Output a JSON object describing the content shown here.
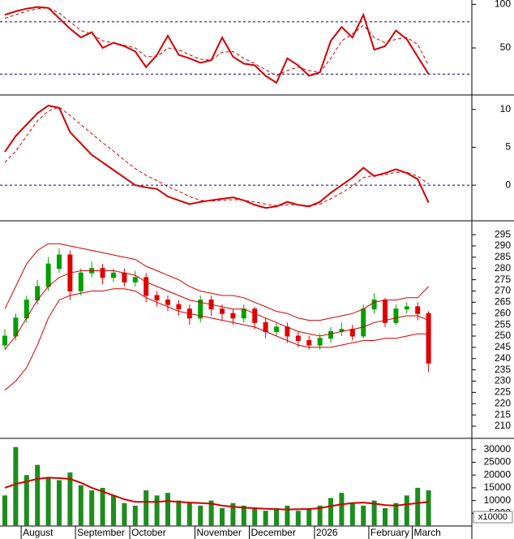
{
  "chart_data": [
    {
      "type": "line",
      "ylim": [
        -4,
        105
      ],
      "yticks": [
        50,
        100
      ],
      "hlines": [
        20,
        80
      ],
      "hline_color": "#00008b",
      "series": [
        {
          "color": "#d40000",
          "line_width": 2,
          "dashed": false,
          "values": [
            88,
            92,
            95,
            97,
            96,
            84,
            72,
            62,
            68,
            50,
            56,
            52,
            46,
            28,
            42,
            64,
            42,
            38,
            33,
            36,
            62,
            40,
            32,
            30,
            18,
            10,
            38,
            30,
            18,
            22,
            58,
            74,
            62,
            88,
            48,
            52,
            70,
            60,
            40,
            20
          ]
        },
        {
          "color": "#d40000",
          "line_width": 1,
          "dashed": true,
          "values": [
            84,
            88,
            92,
            95,
            96,
            90,
            80,
            70,
            66,
            58,
            56,
            53,
            50,
            40,
            40,
            50,
            48,
            42,
            37,
            36,
            45,
            46,
            38,
            32,
            25,
            18,
            24,
            28,
            24,
            22,
            38,
            58,
            66,
            76,
            62,
            56,
            60,
            62,
            54,
            30
          ]
        }
      ]
    },
    {
      "type": "line",
      "ylim": [
        -4.7,
        11.8
      ],
      "yticks": [
        0,
        5,
        10
      ],
      "hlines": [
        0
      ],
      "hline_color": "#00008b",
      "series": [
        {
          "color": "#d40000",
          "line_width": 2,
          "dashed": false,
          "values": [
            4.4,
            6.5,
            8,
            9.5,
            10.5,
            10.2,
            7,
            5.5,
            4,
            3,
            2,
            1,
            0,
            -0.3,
            -0.5,
            -1.5,
            -2,
            -2.5,
            -2.2,
            -2,
            -1.8,
            -1.6,
            -2,
            -2.6,
            -3,
            -2.8,
            -2.2,
            -2.6,
            -2.8,
            -2.2,
            -1,
            0,
            1,
            2.3,
            1.2,
            1.6,
            2.1,
            1.6,
            0.8,
            -2.3
          ]
        },
        {
          "color": "#d40000",
          "line_width": 1,
          "dashed": true,
          "values": [
            3,
            4.5,
            6.5,
            8.5,
            9.8,
            10.3,
            9.2,
            8,
            6.8,
            5.6,
            4.5,
            3.3,
            2.2,
            1.3,
            0.6,
            -0.2,
            -0.8,
            -1.5,
            -2,
            -2.1,
            -2,
            -1.9,
            -2,
            -2.2,
            -2.5,
            -2.7,
            -2.6,
            -2.6,
            -2.7,
            -2.5,
            -1.8,
            -1,
            -0.1,
            1,
            1.3,
            1.4,
            1.7,
            1.7,
            1.2,
            0.2
          ]
        }
      ]
    },
    {
      "type": "candlestick",
      "ylim": [
        204.6,
        300.8
      ],
      "yticks": [
        210,
        215,
        220,
        225,
        230,
        235,
        240,
        245,
        250,
        255,
        260,
        265,
        270,
        275,
        280,
        285,
        290,
        295
      ],
      "up_color": "#00a000",
      "down_color": "#e00000",
      "open": [
        246,
        250,
        258,
        266,
        272,
        280,
        286,
        270,
        278,
        280,
        276,
        278,
        274,
        276,
        268,
        266,
        264,
        262,
        258,
        266,
        262,
        260,
        258,
        262,
        256,
        252,
        254,
        250,
        248,
        246,
        249,
        252,
        253,
        250,
        262,
        266,
        256,
        262,
        263,
        260
      ],
      "high": [
        253,
        260,
        268,
        275,
        285,
        289,
        288,
        280,
        283,
        282,
        280,
        280,
        279,
        278,
        270,
        268,
        266,
        264,
        268,
        268,
        264,
        262,
        264,
        263,
        258,
        256,
        256,
        252,
        250,
        251,
        254,
        256,
        255,
        264,
        269,
        267,
        264,
        265,
        265,
        261
      ],
      "low": [
        244,
        248,
        256,
        264,
        270,
        278,
        266,
        268,
        276,
        273,
        274,
        272,
        272,
        265,
        263,
        261,
        259,
        255,
        256,
        259,
        257,
        255,
        256,
        253,
        249,
        250,
        247,
        245,
        244,
        244,
        247,
        250,
        248,
        249,
        260,
        254,
        255,
        260,
        257,
        234
      ],
      "close": [
        250,
        258,
        266,
        272,
        282,
        286,
        270,
        278,
        280,
        276,
        278,
        274,
        276,
        268,
        266,
        264,
        262,
        258,
        266,
        262,
        260,
        258,
        262,
        256,
        252,
        254,
        250,
        248,
        246,
        249,
        252,
        253,
        250,
        262,
        266,
        256,
        262,
        263,
        260,
        238
      ],
      "series": [
        {
          "color": "#d40000",
          "line_width": 1,
          "dashed": false,
          "values": [
            262,
            272,
            282,
            288,
            291,
            291,
            290,
            289,
            288,
            287,
            286,
            285,
            284,
            281,
            279,
            277,
            275,
            272,
            270,
            269,
            268,
            268,
            267,
            265,
            263,
            261,
            260,
            258,
            257,
            257,
            258,
            259,
            260,
            262,
            265,
            266,
            266,
            267,
            267,
            272
          ]
        },
        {
          "color": "#d40000",
          "line_width": 1,
          "dashed": false,
          "values": [
            244,
            250,
            258,
            266,
            272,
            276,
            278,
            279,
            279,
            279,
            279,
            278,
            277,
            274,
            272,
            270,
            268,
            266,
            265,
            264,
            263,
            262,
            262,
            260,
            258,
            256,
            254,
            252,
            251,
            250,
            251,
            252,
            253,
            254,
            256,
            257,
            258,
            259,
            259,
            257
          ]
        },
        {
          "color": "#d40000",
          "line_width": 1,
          "dashed": false,
          "values": [
            226,
            230,
            236,
            246,
            258,
            266,
            268,
            269,
            270,
            270,
            271,
            271,
            270,
            267,
            265,
            263,
            261,
            260,
            259,
            258,
            257,
            256,
            255,
            254,
            252,
            250,
            248,
            246,
            245,
            245,
            245,
            246,
            247,
            248,
            248,
            249,
            249,
            250,
            251,
            251
          ]
        }
      ]
    },
    {
      "type": "bar",
      "ylim": [
        0,
        34100
      ],
      "yticks": [
        5000,
        10000,
        15000,
        20000,
        25000,
        30000
      ],
      "axis_note": "x10000",
      "color": "#1e8c1e",
      "categories": [
        null,
        null,
        "August",
        null,
        null,
        null,
        null,
        "September",
        null,
        null,
        null,
        null,
        "October",
        null,
        null,
        null,
        null,
        null,
        "November",
        null,
        null,
        null,
        null,
        "December",
        null,
        null,
        null,
        null,
        null,
        "2026",
        null,
        null,
        null,
        null,
        "February",
        null,
        null,
        null,
        "March",
        null
      ],
      "values": [
        12000,
        31000,
        20000,
        24000,
        19000,
        18000,
        21000,
        16000,
        14000,
        15000,
        12000,
        9000,
        8000,
        14000,
        12000,
        13000,
        10000,
        9000,
        8000,
        10000,
        7000,
        9000,
        8000,
        7000,
        6000,
        7000,
        8000,
        6000,
        7000,
        8000,
        11000,
        13000,
        9000,
        8000,
        10000,
        7000,
        9000,
        12000,
        15000,
        14000
      ],
      "series": [
        {
          "color": "#d40000",
          "line_width": 2,
          "dashed": false,
          "values": [
            15000,
            16500,
            17500,
            18500,
            19000,
            18800,
            18500,
            17000,
            15000,
            13500,
            12000,
            10500,
            9500,
            9500,
            9500,
            9800,
            9500,
            9200,
            9000,
            8800,
            8000,
            7600,
            7200,
            7000,
            6800,
            6600,
            6500,
            6600,
            6700,
            7000,
            7800,
            8500,
            9000,
            9200,
            8800,
            8200,
            8000,
            8500,
            9000,
            9500
          ]
        }
      ]
    }
  ]
}
